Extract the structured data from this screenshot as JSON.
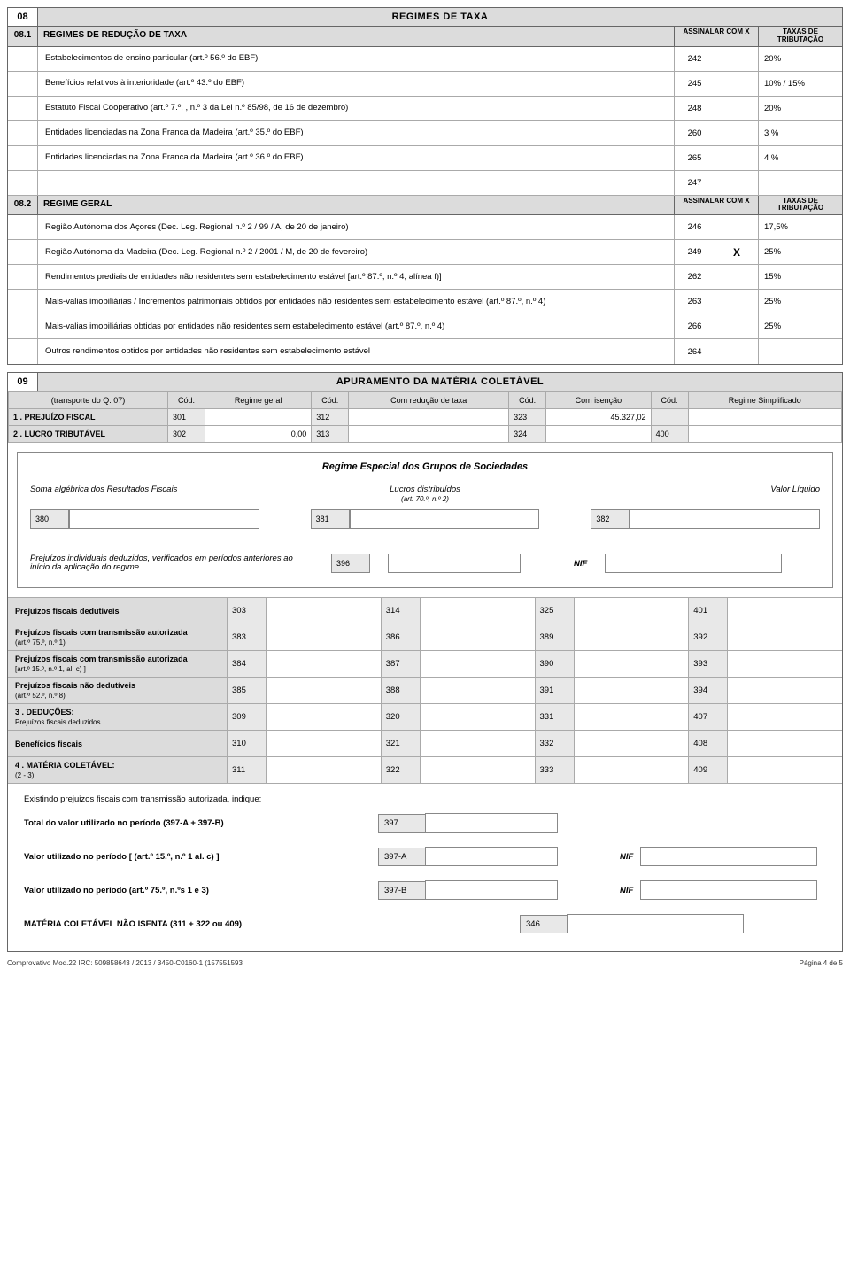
{
  "section08": {
    "num": "08",
    "title": "REGIMES DE TAXA",
    "sub1": {
      "num": "08.1",
      "label": "REGIMES DE REDUÇÃO DE TAXA",
      "col_a": "ASSINALAR COM X",
      "col_b": "TAXAS DE TRIBUTAÇÃO"
    },
    "rows1": [
      {
        "desc": "Estabelecimentos de ensino particular (art.º 56.º do EBF)",
        "code": "242",
        "mark": "",
        "rate": "20%"
      },
      {
        "desc": "Benefícios relativos à interioridade (art.º 43.º do EBF)",
        "code": "245",
        "mark": "",
        "rate": "10% / 15%"
      },
      {
        "desc": "Estatuto Fiscal Cooperativo (art.º 7.º, , n.º 3 da Lei n.º 85/98, de 16 de dezembro)",
        "code": "248",
        "mark": "",
        "rate": "20%"
      },
      {
        "desc": "Entidades licenciadas na Zona Franca da Madeira  (art.º 35.º  do EBF)",
        "code": "260",
        "mark": "",
        "rate": "3 %"
      },
      {
        "desc": "Entidades licenciadas na Zona Franca da Madeira  (art.º 36.º do EBF)",
        "code": "265",
        "mark": "",
        "rate": "4 %"
      },
      {
        "desc": "",
        "code": "247",
        "mark": "",
        "rate": ""
      }
    ],
    "sub2": {
      "num": "08.2",
      "label": "REGIME GERAL",
      "col_a": "ASSINALAR COM X",
      "col_b": "TAXAS DE TRIBUTAÇÃO"
    },
    "rows2": [
      {
        "desc": "Região Autónoma dos Açores (Dec. Leg. Regional n.º 2 / 99 / A, de 20 de janeiro)",
        "code": "246",
        "mark": "",
        "rate": "17,5%"
      },
      {
        "desc": "Região Autónoma da Madeira (Dec. Leg. Regional n.º 2 / 2001 / M, de 20 de fevereiro)",
        "code": "249",
        "mark": "X",
        "rate": "25%"
      },
      {
        "desc": "Rendimentos prediais de entidades não residentes sem estabelecimento estável [art.º 87.º, n.º 4, alínea f)]",
        "code": "262",
        "mark": "",
        "rate": "15%"
      },
      {
        "desc": "Mais-valias imobiliárias / Incrementos patrimoniais obtidos por entidades não residentes sem estabelecimento estável (art.º 87.º, n.º 4)",
        "code": "263",
        "mark": "",
        "rate": "25%"
      },
      {
        "desc": "Mais-valias imobiliárias obtidas por entidades não residentes sem estabelecimento estável (art.º 87.º, n.º 4)",
        "code": "266",
        "mark": "",
        "rate": "25%"
      },
      {
        "desc": "Outros rendimentos obtidos por entidades não residentes sem estabelecimento estável",
        "code": "264",
        "mark": "",
        "rate": ""
      }
    ]
  },
  "section09": {
    "num": "09",
    "title": "APURAMENTO DA MATÉRIA COLETÁVEL",
    "head": {
      "transp": "(transporte do Q. 07)",
      "cod": "Cód.",
      "c1": "Regime geral",
      "c2": "Com redução de taxa",
      "c3": "Com isenção",
      "c4": "Regime Simplificado"
    },
    "row1": {
      "label": "1 .  PREJUÍZO FISCAL",
      "a": "301",
      "b": "312",
      "c": "323",
      "cval": "45.327,02",
      "d": ""
    },
    "row2": {
      "label": "2 .  LUCRO TRIBUTÁVEL",
      "a": "302",
      "aval": "0,00",
      "b": "313",
      "c": "324",
      "d": "400"
    },
    "group": {
      "title": "Regime Especial dos Grupos de Sociedades",
      "l1": "Soma algébrica dos Resultados Fiscais",
      "l2": "Lucros distribuídos",
      "l2s": "(art. 70.º, n.º 2)",
      "l3": "Valor Líquido",
      "c1": "380",
      "c2": "381",
      "c3": "382",
      "p1": "Prejuízos individuais deduzidos, verificados em períodos anteriores ao início da aplicação do regime",
      "pcode": "396",
      "nif": "NIF"
    },
    "grid": [
      {
        "label": "Prejuízos fiscais dedutíveis",
        "sub": "",
        "a": "303",
        "b": "314",
        "c": "325",
        "d": "401"
      },
      {
        "label": "Prejuízos fiscais com  transmissão autorizada",
        "sub": "(art.º 75.º, n.º 1)",
        "a": "383",
        "b": "386",
        "c": "389",
        "d": "392"
      },
      {
        "label": "Prejuízos fiscais com  transmissão autorizada",
        "sub": "[art.º 15.º, n.º 1, al. c) ]",
        "a": "384",
        "b": "387",
        "c": "390",
        "d": "393"
      },
      {
        "label": "Prejuízos fiscais não dedutíveis",
        "sub": "(art.º 52.º, n.º 8)",
        "a": "385",
        "b": "388",
        "c": "391",
        "d": "394"
      },
      {
        "label": "3 .   DEDUÇÕES:",
        "sub": "Prejuízos fiscais deduzidos",
        "a": "309",
        "b": "320",
        "c": "331",
        "d": "407"
      },
      {
        "label": "Benefícios fiscais",
        "sub": "",
        "a": "310",
        "b": "321",
        "c": "332",
        "d": "408"
      },
      {
        "label": "4 .   MATÉRIA COLETÁVEL:",
        "sub": "(2 - 3)",
        "a": "311",
        "b": "322",
        "c": "333",
        "d": "409"
      }
    ],
    "final": {
      "intro": "Existindo prejuizos fiscais com transmissão autorizada, indique:",
      "l1": "Total do valor utilizado no período (397-A + 397-B)",
      "c1": "397",
      "l2": "Valor utilizado no período [ (art.º 15.º, n.º 1 al. c) ]",
      "c2": "397-A",
      "l3": "Valor utilizado no período (art.º 75.º, n.ºs 1 e 3)",
      "c3": "397-B",
      "l4": "MATÉRIA COLETÁVEL NÃO ISENTA (311 + 322 ou 409)",
      "c4": "346",
      "nif": "NIF"
    }
  },
  "footer": {
    "left": "Comprovativo Mod.22 IRC: 509858643 / 2013 / 3450-C0160-1 (157551593",
    "right": "Página 4 de 5"
  }
}
